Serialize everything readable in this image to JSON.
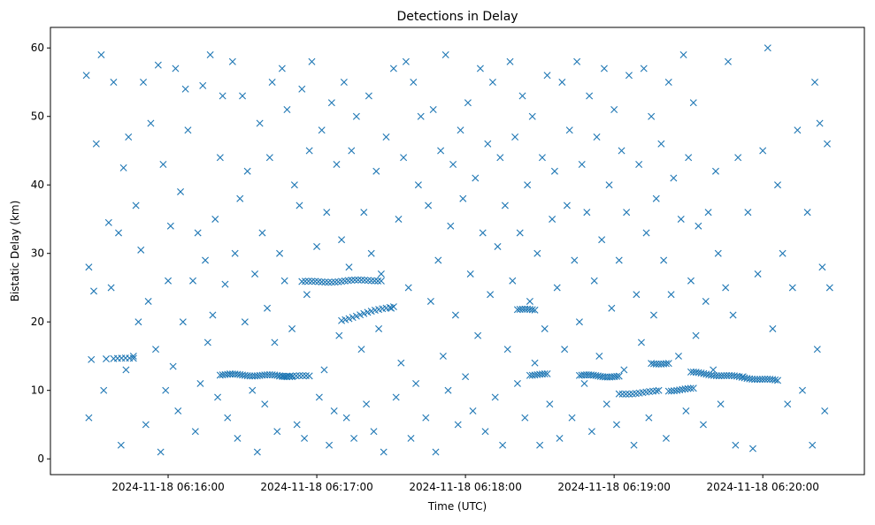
{
  "chart_data": {
    "type": "scatter",
    "title": "Detections in Delay",
    "xlabel": "Time (UTC)",
    "ylabel": "Bistatic Delay (km)",
    "x_units": "seconds after 2024-11-18 06:15:00",
    "xlim": [
      12.5,
      341
    ],
    "ylim": [
      -2.3,
      63
    ],
    "xticks": [
      {
        "value": 60,
        "label": "2024-11-18 06:16:00"
      },
      {
        "value": 120,
        "label": "2024-11-18 06:17:00"
      },
      {
        "value": 180,
        "label": "2024-11-18 06:18:00"
      },
      {
        "value": 240,
        "label": "2024-11-18 06:19:00"
      },
      {
        "value": 300,
        "label": "2024-11-18 06:20:00"
      }
    ],
    "yticks": [
      {
        "value": 0,
        "label": "0"
      },
      {
        "value": 10,
        "label": "10"
      },
      {
        "value": 20,
        "label": "20"
      },
      {
        "value": 30,
        "label": "30"
      },
      {
        "value": 40,
        "label": "40"
      },
      {
        "value": 50,
        "label": "50"
      },
      {
        "value": 60,
        "label": "60"
      }
    ],
    "grid": false,
    "marker": "x",
    "color": "#1f77b4",
    "points": [
      [
        27,
        56
      ],
      [
        28,
        28
      ],
      [
        29,
        14.5
      ],
      [
        28,
        6
      ],
      [
        30,
        24.5
      ],
      [
        31,
        46
      ],
      [
        33,
        59
      ],
      [
        34,
        10
      ],
      [
        35,
        14.6
      ],
      [
        36,
        34.5
      ],
      [
        37,
        25
      ],
      [
        38,
        55
      ],
      [
        40,
        33
      ],
      [
        41,
        2
      ],
      [
        42,
        42.5
      ],
      [
        43,
        13
      ],
      [
        44,
        47
      ],
      [
        46,
        15
      ],
      [
        47,
        37
      ],
      [
        48,
        20
      ],
      [
        49,
        30.5
      ],
      [
        50,
        55
      ],
      [
        51,
        5
      ],
      [
        52,
        23
      ],
      [
        53,
        49
      ],
      [
        55,
        16
      ],
      [
        56,
        57.5
      ],
      [
        57,
        1
      ],
      [
        58,
        43
      ],
      [
        59,
        10
      ],
      [
        60,
        26
      ],
      [
        61,
        34
      ],
      [
        62,
        13.5
      ],
      [
        63,
        57
      ],
      [
        64,
        7
      ],
      [
        65,
        39
      ],
      [
        66,
        20
      ],
      [
        67,
        54
      ],
      [
        68,
        48
      ],
      [
        70,
        26
      ],
      [
        71,
        4
      ],
      [
        72,
        33
      ],
      [
        73,
        11
      ],
      [
        74,
        54.5
      ],
      [
        75,
        29
      ],
      [
        76,
        17
      ],
      [
        77,
        59
      ],
      [
        78,
        21
      ],
      [
        79,
        35
      ],
      [
        80,
        9
      ],
      [
        81,
        44
      ],
      [
        82,
        53
      ],
      [
        83,
        25.5
      ],
      [
        84,
        6
      ],
      [
        85,
        12.4
      ],
      [
        86,
        58
      ],
      [
        87,
        30
      ],
      [
        88,
        3
      ],
      [
        89,
        38
      ],
      [
        90,
        53
      ],
      [
        91,
        20
      ],
      [
        92,
        42
      ],
      [
        94,
        10
      ],
      [
        95,
        27
      ],
      [
        96,
        1
      ],
      [
        97,
        49
      ],
      [
        98,
        33
      ],
      [
        99,
        8
      ],
      [
        100,
        22
      ],
      [
        101,
        44
      ],
      [
        102,
        55
      ],
      [
        103,
        17
      ],
      [
        104,
        4
      ],
      [
        105,
        30
      ],
      [
        106,
        57
      ],
      [
        107,
        26
      ],
      [
        108,
        51
      ],
      [
        110,
        19
      ],
      [
        111,
        40
      ],
      [
        112,
        5
      ],
      [
        113,
        37
      ],
      [
        114,
        54
      ],
      [
        115,
        3
      ],
      [
        116,
        24
      ],
      [
        117,
        45
      ],
      [
        118,
        58
      ],
      [
        120,
        31
      ],
      [
        121,
        9
      ],
      [
        122,
        48
      ],
      [
        123,
        13
      ],
      [
        124,
        36
      ],
      [
        125,
        2
      ],
      [
        126,
        52
      ],
      [
        127,
        7
      ],
      [
        128,
        43
      ],
      [
        129,
        18
      ],
      [
        130,
        32
      ],
      [
        131,
        55
      ],
      [
        132,
        6
      ],
      [
        133,
        28
      ],
      [
        134,
        45
      ],
      [
        135,
        3
      ],
      [
        136,
        50
      ],
      [
        138,
        16
      ],
      [
        139,
        36
      ],
      [
        140,
        8
      ],
      [
        141,
        53
      ],
      [
        142,
        30
      ],
      [
        143,
        4
      ],
      [
        144,
        42
      ],
      [
        145,
        19
      ],
      [
        146,
        27
      ],
      [
        147,
        1
      ],
      [
        148,
        47
      ],
      [
        150,
        22
      ],
      [
        151,
        57
      ],
      [
        152,
        9
      ],
      [
        153,
        35
      ],
      [
        154,
        14
      ],
      [
        155,
        44
      ],
      [
        156,
        58
      ],
      [
        157,
        25
      ],
      [
        158,
        3
      ],
      [
        159,
        55
      ],
      [
        160,
        11
      ],
      [
        161,
        40
      ],
      [
        162,
        50
      ],
      [
        164,
        6
      ],
      [
        165,
        37
      ],
      [
        166,
        23
      ],
      [
        167,
        51
      ],
      [
        168,
        1
      ],
      [
        169,
        29
      ],
      [
        170,
        45
      ],
      [
        171,
        15
      ],
      [
        172,
        59
      ],
      [
        173,
        10
      ],
      [
        174,
        34
      ],
      [
        175,
        43
      ],
      [
        176,
        21
      ],
      [
        177,
        5
      ],
      [
        178,
        48
      ],
      [
        179,
        38
      ],
      [
        180,
        12
      ],
      [
        181,
        52
      ],
      [
        182,
        27
      ],
      [
        183,
        7
      ],
      [
        184,
        41
      ],
      [
        185,
        18
      ],
      [
        186,
        57
      ],
      [
        187,
        33
      ],
      [
        188,
        4
      ],
      [
        189,
        46
      ],
      [
        190,
        24
      ],
      [
        191,
        55
      ],
      [
        192,
        9
      ],
      [
        193,
        31
      ],
      [
        194,
        44
      ],
      [
        195,
        2
      ],
      [
        196,
        37
      ],
      [
        197,
        16
      ],
      [
        198,
        58
      ],
      [
        199,
        26
      ],
      [
        200,
        47
      ],
      [
        201,
        11
      ],
      [
        202,
        33
      ],
      [
        203,
        53
      ],
      [
        204,
        6
      ],
      [
        205,
        40
      ],
      [
        206,
        23
      ],
      [
        207,
        50
      ],
      [
        208,
        14
      ],
      [
        209,
        30
      ],
      [
        210,
        2
      ],
      [
        211,
        44
      ],
      [
        212,
        19
      ],
      [
        213,
        56
      ],
      [
        214,
        8
      ],
      [
        215,
        35
      ],
      [
        216,
        42
      ],
      [
        217,
        25
      ],
      [
        218,
        3
      ],
      [
        219,
        55
      ],
      [
        220,
        16
      ],
      [
        221,
        37
      ],
      [
        222,
        48
      ],
      [
        223,
        6
      ],
      [
        224,
        29
      ],
      [
        225,
        58
      ],
      [
        226,
        20
      ],
      [
        227,
        43
      ],
      [
        228,
        11
      ],
      [
        229,
        36
      ],
      [
        230,
        53
      ],
      [
        231,
        4
      ],
      [
        232,
        26
      ],
      [
        233,
        47
      ],
      [
        234,
        15
      ],
      [
        235,
        32
      ],
      [
        236,
        57
      ],
      [
        237,
        8
      ],
      [
        238,
        40
      ],
      [
        239,
        22
      ],
      [
        240,
        51
      ],
      [
        241,
        5
      ],
      [
        242,
        29
      ],
      [
        243,
        45
      ],
      [
        244,
        13
      ],
      [
        245,
        36
      ],
      [
        246,
        56
      ],
      [
        248,
        2
      ],
      [
        249,
        24
      ],
      [
        250,
        43
      ],
      [
        251,
        17
      ],
      [
        252,
        57
      ],
      [
        253,
        33
      ],
      [
        254,
        6
      ],
      [
        255,
        50
      ],
      [
        256,
        21
      ],
      [
        257,
        38
      ],
      [
        258,
        10
      ],
      [
        259,
        46
      ],
      [
        260,
        29
      ],
      [
        261,
        3
      ],
      [
        262,
        55
      ],
      [
        263,
        24
      ],
      [
        264,
        41
      ],
      [
        266,
        15
      ],
      [
        267,
        35
      ],
      [
        268,
        59
      ],
      [
        269,
        7
      ],
      [
        270,
        44
      ],
      [
        271,
        26
      ],
      [
        272,
        52
      ],
      [
        273,
        18
      ],
      [
        274,
        34
      ],
      [
        276,
        5
      ],
      [
        277,
        23
      ],
      [
        278,
        36
      ],
      [
        280,
        13
      ],
      [
        281,
        42
      ],
      [
        282,
        30
      ],
      [
        283,
        8
      ],
      [
        285,
        25
      ],
      [
        286,
        58
      ],
      [
        288,
        21
      ],
      [
        289,
        2
      ],
      [
        290,
        44
      ],
      [
        292,
        12
      ],
      [
        294,
        36
      ],
      [
        296,
        1.5
      ],
      [
        298,
        27
      ],
      [
        300,
        45
      ],
      [
        302,
        60
      ],
      [
        304,
        19
      ],
      [
        306,
        40
      ],
      [
        308,
        30
      ],
      [
        310,
        8
      ],
      [
        312,
        25
      ],
      [
        314,
        48
      ],
      [
        316,
        10
      ],
      [
        318,
        36
      ],
      [
        320,
        2
      ],
      [
        321,
        55
      ],
      [
        322,
        16
      ],
      [
        323,
        49
      ],
      [
        324,
        28
      ],
      [
        325,
        7
      ],
      [
        326,
        46
      ],
      [
        327,
        25
      ]
    ],
    "tracks": [
      {
        "t0": 81,
        "t1": 110,
        "y0": 12.3,
        "y1": 12.1,
        "n": 30
      },
      {
        "t0": 114,
        "t1": 146,
        "y0": 25.8,
        "y1": 26.1,
        "n": 25
      },
      {
        "t0": 130,
        "t1": 151,
        "y0": 20.3,
        "y1": 22.3,
        "n": 15
      },
      {
        "t0": 105,
        "t1": 117,
        "y0": 12.2,
        "y1": 12.0,
        "n": 10
      },
      {
        "t0": 201,
        "t1": 208,
        "y0": 21.8,
        "y1": 21.7,
        "n": 8
      },
      {
        "t0": 206,
        "t1": 213,
        "y0": 12.3,
        "y1": 12.3,
        "n": 8
      },
      {
        "t0": 226,
        "t1": 242,
        "y0": 12.2,
        "y1": 12.0,
        "n": 18
      },
      {
        "t0": 242,
        "t1": 257,
        "y0": 9.5,
        "y1": 9.8,
        "n": 12
      },
      {
        "t0": 255,
        "t1": 262,
        "y0": 14.0,
        "y1": 13.9,
        "n": 8
      },
      {
        "t0": 262,
        "t1": 272,
        "y0": 10.0,
        "y1": 10.2,
        "n": 10
      },
      {
        "t0": 271,
        "t1": 306,
        "y0": 12.6,
        "y1": 11.4,
        "n": 35
      },
      {
        "t0": 38,
        "t1": 46,
        "y0": 14.6,
        "y1": 14.6,
        "n": 6
      }
    ]
  }
}
